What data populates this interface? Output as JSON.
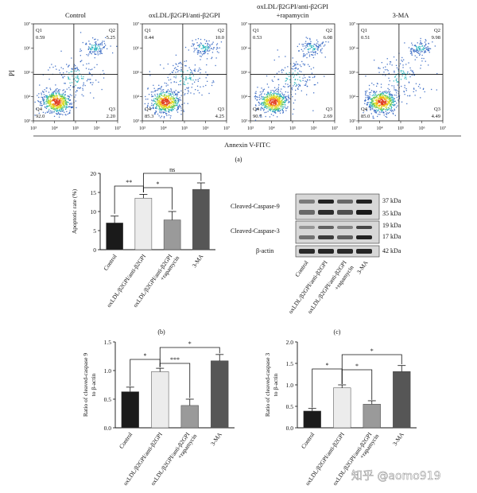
{
  "flow": {
    "axis_x_label": "Annexin V-FITC",
    "axis_y_label": "PI",
    "tick_labels": [
      "10³",
      "10⁴",
      "10⁵",
      "10⁶",
      "10⁷"
    ],
    "panel_label": "(a)",
    "panels": [
      {
        "title": "Control",
        "title2": "",
        "q1": "0.59",
        "q2": "5.25",
        "q3": "2.20",
        "q4": "92.0"
      },
      {
        "title": "oxLDL/β2GPI/anti-β2GPI",
        "title2": "",
        "q1": "0.44",
        "q2": "10.0",
        "q3": "4.25",
        "q4": "85.3"
      },
      {
        "title": "oxLDL/β2GPI/anti-β2GPI",
        "title2": "+rapamycin",
        "q1": "0.53",
        "q2": "6.08",
        "q3": "2.69",
        "q4": "90.7"
      },
      {
        "title": "3-MA",
        "title2": "",
        "q1": "0.51",
        "q2": "9.98",
        "q3": "4.49",
        "q4": "85.0"
      }
    ],
    "quadrant_names": [
      "Q1",
      "Q2",
      "Q3",
      "Q4"
    ]
  },
  "western": {
    "panel_label": "(c)",
    "rows": [
      {
        "label": "Cleaved-Caspase-9",
        "kda": [
          "37 kDa",
          "35 kDa"
        ]
      },
      {
        "label": "Cleaved-Caspase-3",
        "kda": [
          "19 kDa",
          "17 kDa"
        ]
      },
      {
        "label": "β-actin",
        "kda": [
          "42 kDa"
        ]
      }
    ],
    "lanes": [
      "Control",
      "oxLDL/β2GPI/anti-β2GPI",
      "oxLDL/β2GPI/anti-β2GPI",
      "+rapamycin",
      "3-MA"
    ]
  },
  "chart_data": [
    {
      "type": "bar",
      "panel_label": "(b)",
      "ylabel": "Apoptotic rate (%)",
      "ylim": [
        0,
        20
      ],
      "yticks": [
        "0",
        "5",
        "10",
        "15",
        "20"
      ],
      "categories": [
        "Control",
        "oxLDL/β2GPI/anti-β2GPI",
        "oxLDL/β2GPI/anti-β2GPI +rapamycin",
        "3-MA"
      ],
      "values": [
        7.0,
        13.5,
        7.8,
        15.8
      ],
      "errors": [
        1.8,
        1.0,
        2.2,
        1.7
      ],
      "colors": [
        "#1a1a1a",
        "#ececec",
        "#9a9a9a",
        "#565656"
      ],
      "sig": [
        "**",
        "*",
        "ns"
      ]
    },
    {
      "type": "bar",
      "ylabel": "Ratio of cleaved-caspase 9 to β-actin",
      "ylim": [
        0,
        1.5
      ],
      "yticks": [
        "0.0",
        "0.5",
        "1.0",
        "1.5"
      ],
      "categories": [
        "Control",
        "oxLDL/β2GPI/anti-β2GPI",
        "oxLDL/β2GPI/anti-β2GPI +rapamycin",
        "3-MA"
      ],
      "values": [
        0.63,
        0.98,
        0.39,
        1.17
      ],
      "errors": [
        0.08,
        0.06,
        0.11,
        0.11
      ],
      "colors": [
        "#1a1a1a",
        "#ececec",
        "#9a9a9a",
        "#565656"
      ],
      "sig": [
        "*",
        "***",
        "*"
      ]
    },
    {
      "type": "bar",
      "ylabel": "Ratio of cleaved-caspase 3 to β-actin",
      "ylim": [
        0,
        2.0
      ],
      "yticks": [
        "0.0",
        "0.5",
        "1.0",
        "1.5",
        "2.0"
      ],
      "categories": [
        "Control",
        "oxLDL/β2GPI/anti-β2GPI",
        "oxLDL/β2GPI/anti-β2GPI +rapamycin",
        "3-MA"
      ],
      "values": [
        0.39,
        0.93,
        0.55,
        1.31
      ],
      "errors": [
        0.06,
        0.07,
        0.08,
        0.14
      ],
      "colors": [
        "#1a1a1a",
        "#ececec",
        "#9a9a9a",
        "#565656"
      ],
      "sig": [
        "*",
        "*",
        "*"
      ]
    }
  ],
  "rapamycin_suffix": "+rapamycin",
  "watermark": "知乎 @aomo919"
}
